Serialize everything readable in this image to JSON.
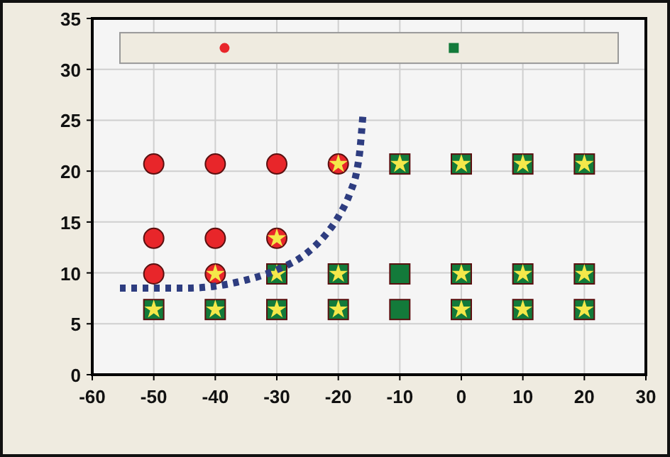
{
  "chart_data": {
    "type": "scatter",
    "xlim": [
      -60,
      30
    ],
    "ylim": [
      0,
      35
    ],
    "xticks": [
      -60,
      -50,
      -40,
      -30,
      -20,
      -10,
      0,
      10,
      20,
      30
    ],
    "yticks": [
      0,
      5,
      10,
      15,
      20,
      25,
      30,
      35
    ],
    "grid": true,
    "series": [
      {
        "marker": "circle",
        "color": "#e8262a",
        "x": [
          -50,
          -40,
          -30,
          -20,
          -50,
          -40,
          -30,
          -50,
          -40
        ],
        "values": [
          20.7,
          20.7,
          20.7,
          20.7,
          13.4,
          13.4,
          13.4,
          9.9,
          9.9
        ]
      },
      {
        "marker": "square",
        "color": "#137a3a",
        "x": [
          -10,
          0,
          10,
          20,
          -30,
          -20,
          -10,
          0,
          10,
          20,
          -50,
          -40,
          -30,
          -20,
          -10,
          0,
          10,
          20
        ],
        "values": [
          20.7,
          20.7,
          20.7,
          20.7,
          9.9,
          9.9,
          9.9,
          9.9,
          9.9,
          9.9,
          6.4,
          6.4,
          6.4,
          6.4,
          6.4,
          6.4,
          6.4,
          6.4
        ]
      },
      {
        "marker": "star",
        "color": "#f4e84a",
        "x": [
          -20,
          -30,
          -40,
          -10,
          0,
          10,
          20,
          -30,
          -20,
          0,
          10,
          20,
          -50,
          -40,
          -30,
          -20,
          0,
          10,
          20
        ],
        "values": [
          20.7,
          13.4,
          9.9,
          20.7,
          20.7,
          20.7,
          20.7,
          9.9,
          9.9,
          9.9,
          9.9,
          9.9,
          6.4,
          6.4,
          6.4,
          6.4,
          6.4,
          6.4,
          6.4
        ]
      },
      {
        "type": "line",
        "line_style": "dotted",
        "color": "#2e3d80",
        "x": [
          -55.5,
          -45,
          -40,
          -35,
          -30,
          -25,
          -22,
          -20,
          -18,
          -17,
          -16.5,
          -16
        ],
        "values": [
          8.5,
          8.5,
          8.7,
          9.3,
          10.3,
          12,
          13.8,
          15.5,
          18,
          20,
          22,
          25.5
        ]
      }
    ]
  }
}
